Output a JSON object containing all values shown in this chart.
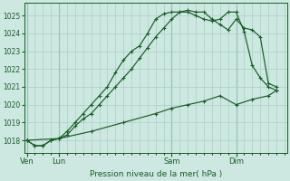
{
  "bg_color": "#cce8e0",
  "grid_color": "#aacfc8",
  "line_color": "#1a5c28",
  "title": "Pression niveau de la mer( hPa )",
  "ylabel_ticks": [
    1018,
    1019,
    1020,
    1021,
    1022,
    1023,
    1024,
    1025
  ],
  "ylim": [
    1017.3,
    1025.7
  ],
  "xlim": [
    -0.3,
    32.3
  ],
  "xtick_labels": [
    "Ven",
    "Lun",
    "Sam",
    "Dim"
  ],
  "xtick_positions": [
    0,
    4,
    18,
    26
  ],
  "vline_positions": [
    0,
    4,
    18,
    26
  ],
  "line1_x": [
    0,
    1,
    2,
    3,
    4,
    5,
    6,
    7,
    8,
    9,
    10,
    11,
    12,
    13,
    14,
    15,
    16,
    17,
    18,
    19,
    20,
    21,
    22,
    23,
    24,
    25,
    26,
    27,
    28,
    29,
    30,
    31
  ],
  "line1_y": [
    1018.0,
    1017.7,
    1017.7,
    1018.0,
    1018.1,
    1018.5,
    1019.0,
    1019.5,
    1020.0,
    1020.5,
    1021.0,
    1021.8,
    1022.5,
    1023.0,
    1023.3,
    1024.0,
    1024.8,
    1025.1,
    1025.2,
    1025.2,
    1025.2,
    1025.0,
    1024.8,
    1024.7,
    1024.8,
    1025.2,
    1025.2,
    1024.1,
    1022.2,
    1021.5,
    1021.0,
    1020.8
  ],
  "line2_x": [
    0,
    1,
    2,
    3,
    4,
    5,
    6,
    7,
    8,
    9,
    10,
    11,
    12,
    13,
    14,
    15,
    16,
    17,
    18,
    19,
    20,
    21,
    22,
    23,
    24,
    25,
    26,
    27,
    28,
    29,
    30,
    31
  ],
  "line2_y": [
    1018.0,
    1017.7,
    1017.7,
    1018.0,
    1018.1,
    1018.3,
    1018.8,
    1019.2,
    1019.5,
    1020.0,
    1020.5,
    1021.0,
    1021.5,
    1022.0,
    1022.6,
    1023.2,
    1023.8,
    1024.3,
    1024.8,
    1025.2,
    1025.3,
    1025.2,
    1025.2,
    1024.8,
    1024.5,
    1024.2,
    1024.8,
    1024.3,
    1024.2,
    1023.8,
    1021.2,
    1021.0
  ],
  "line3_x": [
    0,
    4,
    8,
    12,
    16,
    18,
    20,
    22,
    24,
    26,
    28,
    30,
    31
  ],
  "line3_y": [
    1018.0,
    1018.1,
    1018.5,
    1019.0,
    1019.5,
    1019.8,
    1020.0,
    1020.2,
    1020.5,
    1020.0,
    1020.3,
    1020.5,
    1020.8
  ]
}
